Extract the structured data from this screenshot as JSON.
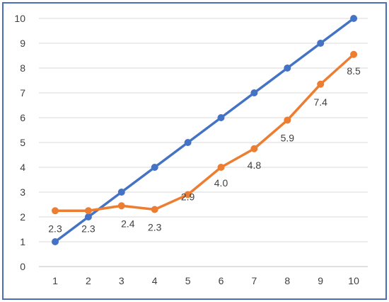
{
  "chart_data": {
    "type": "line",
    "x": [
      1,
      2,
      3,
      4,
      5,
      6,
      7,
      8,
      9,
      10
    ],
    "ylim": [
      0,
      10
    ],
    "yticks": [
      "0",
      "1",
      "2",
      "3",
      "4",
      "5",
      "6",
      "7",
      "8",
      "9",
      "10"
    ],
    "xticks": [
      "1",
      "2",
      "3",
      "4",
      "5",
      "6",
      "7",
      "8",
      "9",
      "10"
    ],
    "grid": "horizontal",
    "legend": "none",
    "series": [
      {
        "values": [
          1,
          2,
          3,
          4,
          5,
          6,
          7,
          8,
          9,
          10
        ],
        "color": "#4472c4",
        "labels": []
      },
      {
        "values": [
          2.25,
          2.25,
          2.45,
          2.3,
          2.9,
          4.0,
          4.75,
          5.9,
          7.35,
          8.55
        ],
        "color": "#ed7d31",
        "labels": [
          "2.3",
          "2.3",
          "2.4",
          "2.3",
          "2.9",
          "4.0",
          "4.8",
          "5.9",
          "7.4",
          "8.5"
        ]
      }
    ]
  }
}
